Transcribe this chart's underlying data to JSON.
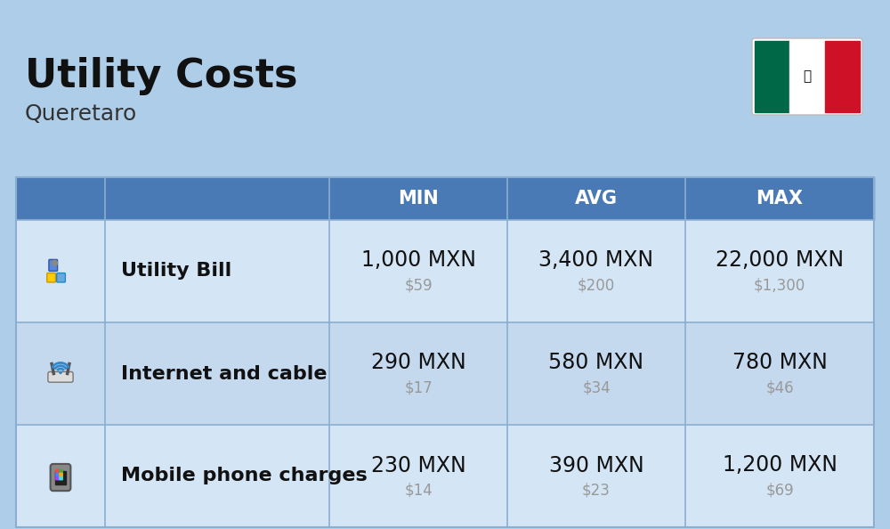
{
  "title": "Utility Costs",
  "subtitle": "Queretaro",
  "background_color": "#aecde8",
  "header_bg_color": "#4a7ab5",
  "header_text_color": "#ffffff",
  "row_colors": [
    "#d4e5f5",
    "#c4d8ee"
  ],
  "col_headers": [
    "MIN",
    "AVG",
    "MAX"
  ],
  "rows": [
    {
      "label": "Utility Bill",
      "min_mxn": "1,000 MXN",
      "min_usd": "$59",
      "avg_mxn": "3,400 MXN",
      "avg_usd": "$200",
      "max_mxn": "22,000 MXN",
      "max_usd": "$1,300"
    },
    {
      "label": "Internet and cable",
      "min_mxn": "290 MXN",
      "min_usd": "$17",
      "avg_mxn": "580 MXN",
      "avg_usd": "$34",
      "max_mxn": "780 MXN",
      "max_usd": "$46"
    },
    {
      "label": "Mobile phone charges",
      "min_mxn": "230 MXN",
      "min_usd": "$14",
      "avg_mxn": "390 MXN",
      "avg_usd": "$23",
      "max_mxn": "1,200 MXN",
      "max_usd": "$69"
    }
  ],
  "mxn_fontsize": 17,
  "usd_fontsize": 12,
  "label_fontsize": 16,
  "header_fontsize": 15,
  "title_fontsize": 32,
  "subtitle_fontsize": 18,
  "usd_color": "#999999",
  "label_color": "#111111",
  "mxn_color": "#111111",
  "table_border_color": "#8aaed0",
  "flag_green": "#006847",
  "flag_white": "#ffffff",
  "flag_red": "#ce1126"
}
